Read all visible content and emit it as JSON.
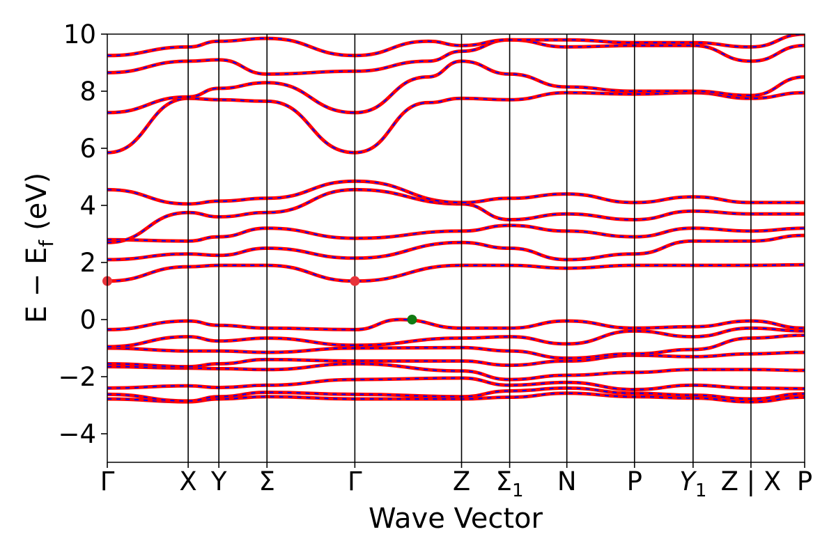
{
  "chart_data": {
    "type": "line",
    "xlabel": "Wave Vector",
    "ylabel": "E − E",
    "ylabel_subscript": "f",
    "ylabel_unit": "(eV)",
    "ylim": [
      -5,
      10
    ],
    "yticks": [
      -4,
      -2,
      0,
      2,
      4,
      6,
      8,
      10
    ],
    "xlim": [
      0,
      1
    ],
    "high_symmetry_points": [
      {
        "label": "Γ",
        "x": 0.0
      },
      {
        "label": "X",
        "x": 0.116
      },
      {
        "label": "Y",
        "x": 0.16
      },
      {
        "label": "Σ",
        "x": 0.229
      },
      {
        "label": "Γ",
        "x": 0.355
      },
      {
        "label": "Z",
        "x": 0.508
      },
      {
        "label": "Σ",
        "sub": "1",
        "x": 0.577
      },
      {
        "label": "N",
        "x": 0.659
      },
      {
        "label": "P",
        "x": 0.756
      },
      {
        "label": "Y",
        "sub": "1",
        "italic": true,
        "x": 0.84
      },
      {
        "label": "Z | X",
        "x": 0.923
      },
      {
        "label": "P",
        "x": 1.0
      }
    ],
    "series": [
      {
        "color": "#ff0000",
        "style": "solid"
      },
      {
        "color": "#0000ff",
        "style": "dashed"
      }
    ],
    "bands": [
      [
        [
          0,
          -2.78
        ],
        [
          0.116,
          -2.88
        ],
        [
          0.16,
          -2.78
        ],
        [
          0.229,
          -2.7
        ],
        [
          0.355,
          -2.78
        ],
        [
          0.508,
          -2.78
        ],
        [
          0.577,
          -2.72
        ],
        [
          0.659,
          -2.58
        ],
        [
          0.756,
          -2.7
        ],
        [
          0.84,
          -2.75
        ],
        [
          0.923,
          -2.88
        ],
        [
          1.0,
          -2.72
        ]
      ],
      [
        [
          0,
          -2.62
        ],
        [
          0.116,
          -2.85
        ],
        [
          0.16,
          -2.7
        ],
        [
          0.229,
          -2.55
        ],
        [
          0.355,
          -2.62
        ],
        [
          0.508,
          -2.7
        ],
        [
          0.577,
          -2.5
        ],
        [
          0.659,
          -2.4
        ],
        [
          0.756,
          -2.58
        ],
        [
          0.84,
          -2.65
        ],
        [
          0.923,
          -2.78
        ],
        [
          1.0,
          -2.6
        ]
      ],
      [
        [
          0,
          -2.4
        ],
        [
          0.116,
          -2.32
        ],
        [
          0.16,
          -2.38
        ],
        [
          0.229,
          -2.3
        ],
        [
          0.355,
          -2.1
        ],
        [
          0.508,
          -2.05
        ],
        [
          0.577,
          -2.3
        ],
        [
          0.659,
          -2.2
        ],
        [
          0.756,
          -2.45
        ],
        [
          0.84,
          -2.3
        ],
        [
          0.923,
          -2.4
        ],
        [
          1.0,
          -2.42
        ]
      ],
      [
        [
          0,
          -1.65
        ],
        [
          0.116,
          -1.7
        ],
        [
          0.16,
          -1.72
        ],
        [
          0.229,
          -1.75
        ],
        [
          0.355,
          -1.55
        ],
        [
          0.508,
          -1.8
        ],
        [
          0.577,
          -2.1
        ],
        [
          0.659,
          -1.95
        ],
        [
          0.756,
          -1.85
        ],
        [
          0.84,
          -1.75
        ],
        [
          0.923,
          -1.75
        ],
        [
          1.0,
          -1.78
        ]
      ],
      [
        [
          0,
          -1.55
        ],
        [
          0.116,
          -1.65
        ],
        [
          0.16,
          -1.55
        ],
        [
          0.229,
          -1.4
        ],
        [
          0.355,
          -1.45
        ],
        [
          0.508,
          -1.45
        ],
        [
          0.577,
          -1.6
        ],
        [
          0.659,
          -1.45
        ],
        [
          0.756,
          -1.25
        ],
        [
          0.84,
          -1.3
        ],
        [
          0.923,
          -1.2
        ],
        [
          1.0,
          -1.15
        ]
      ],
      [
        [
          0,
          -1.0
        ],
        [
          0.116,
          -1.1
        ],
        [
          0.16,
          -1.1
        ],
        [
          0.229,
          -1.15
        ],
        [
          0.355,
          -1.0
        ],
        [
          0.508,
          -0.98
        ],
        [
          0.577,
          -1.1
        ],
        [
          0.659,
          -1.35
        ],
        [
          0.756,
          -1.2
        ],
        [
          0.84,
          -1.05
        ],
        [
          0.923,
          -0.65
        ],
        [
          1.0,
          -0.55
        ]
      ],
      [
        [
          0,
          -0.95
        ],
        [
          0.116,
          -0.6
        ],
        [
          0.16,
          -0.75
        ],
        [
          0.229,
          -0.65
        ],
        [
          0.355,
          -0.9
        ],
        [
          0.508,
          -0.65
        ],
        [
          0.577,
          -0.6
        ],
        [
          0.659,
          -0.85
        ],
        [
          0.756,
          -0.4
        ],
        [
          0.84,
          -0.6
        ],
        [
          0.923,
          -0.3
        ],
        [
          1.0,
          -0.4
        ]
      ],
      [
        [
          0,
          -0.35
        ],
        [
          0.116,
          -0.05
        ],
        [
          0.16,
          -0.2
        ],
        [
          0.229,
          -0.3
        ],
        [
          0.355,
          -0.35
        ],
        [
          0.42,
          0.0
        ],
        [
          0.508,
          -0.3
        ],
        [
          0.577,
          -0.3
        ],
        [
          0.659,
          -0.05
        ],
        [
          0.756,
          -0.3
        ],
        [
          0.84,
          -0.25
        ],
        [
          0.923,
          -0.05
        ],
        [
          1.0,
          -0.3
        ]
      ],
      [
        [
          0,
          1.35
        ],
        [
          0.116,
          1.85
        ],
        [
          0.16,
          1.9
        ],
        [
          0.229,
          1.9
        ],
        [
          0.355,
          1.35
        ],
        [
          0.508,
          1.9
        ],
        [
          0.577,
          1.9
        ],
        [
          0.659,
          1.8
        ],
        [
          0.756,
          1.9
        ],
        [
          0.84,
          1.9
        ],
        [
          0.923,
          1.9
        ],
        [
          1.0,
          1.92
        ]
      ],
      [
        [
          0,
          2.1
        ],
        [
          0.116,
          2.3
        ],
        [
          0.16,
          2.25
        ],
        [
          0.229,
          2.5
        ],
        [
          0.355,
          2.15
        ],
        [
          0.508,
          2.7
        ],
        [
          0.577,
          2.5
        ],
        [
          0.659,
          2.1
        ],
        [
          0.756,
          2.3
        ],
        [
          0.84,
          2.75
        ],
        [
          0.923,
          2.75
        ],
        [
          1.0,
          2.95
        ]
      ],
      [
        [
          0,
          2.8
        ],
        [
          0.116,
          2.75
        ],
        [
          0.16,
          2.9
        ],
        [
          0.229,
          3.2
        ],
        [
          0.355,
          2.85
        ],
        [
          0.508,
          3.1
        ],
        [
          0.577,
          3.3
        ],
        [
          0.659,
          3.1
        ],
        [
          0.756,
          2.9
        ],
        [
          0.84,
          3.2
        ],
        [
          0.923,
          3.1
        ],
        [
          1.0,
          3.2
        ]
      ],
      [
        [
          0,
          2.7
        ],
        [
          0.116,
          3.75
        ],
        [
          0.16,
          3.6
        ],
        [
          0.229,
          3.75
        ],
        [
          0.355,
          4.55
        ],
        [
          0.508,
          4.05
        ],
        [
          0.577,
          3.5
        ],
        [
          0.659,
          3.7
        ],
        [
          0.756,
          3.5
        ],
        [
          0.84,
          3.8
        ],
        [
          0.923,
          3.7
        ],
        [
          1.0,
          3.7
        ]
      ],
      [
        [
          0,
          4.55
        ],
        [
          0.116,
          4.05
        ],
        [
          0.16,
          4.15
        ],
        [
          0.229,
          4.25
        ],
        [
          0.355,
          4.85
        ],
        [
          0.508,
          4.1
        ],
        [
          0.577,
          4.25
        ],
        [
          0.659,
          4.4
        ],
        [
          0.756,
          4.1
        ],
        [
          0.84,
          4.3
        ],
        [
          0.923,
          4.1
        ],
        [
          1.0,
          4.1
        ]
      ],
      [
        [
          0,
          5.85
        ],
        [
          0.116,
          7.75
        ],
        [
          0.16,
          7.7
        ],
        [
          0.229,
          7.65
        ],
        [
          0.355,
          5.85
        ],
        [
          0.46,
          7.6
        ],
        [
          0.508,
          7.75
        ],
        [
          0.577,
          7.7
        ],
        [
          0.659,
          7.95
        ],
        [
          0.756,
          7.9
        ],
        [
          0.84,
          7.95
        ],
        [
          0.923,
          7.75
        ],
        [
          1.0,
          7.95
        ]
      ],
      [
        [
          0,
          7.25
        ],
        [
          0.116,
          7.8
        ],
        [
          0.16,
          8.1
        ],
        [
          0.229,
          8.3
        ],
        [
          0.355,
          7.25
        ],
        [
          0.46,
          8.5
        ],
        [
          0.508,
          9.05
        ],
        [
          0.577,
          8.6
        ],
        [
          0.659,
          8.15
        ],
        [
          0.756,
          8.0
        ],
        [
          0.84,
          8.0
        ],
        [
          0.923,
          7.85
        ],
        [
          1.0,
          8.5
        ]
      ],
      [
        [
          0,
          8.65
        ],
        [
          0.116,
          9.05
        ],
        [
          0.16,
          9.1
        ],
        [
          0.229,
          8.6
        ],
        [
          0.355,
          8.7
        ],
        [
          0.46,
          9.05
        ],
        [
          0.508,
          9.4
        ],
        [
          0.577,
          9.8
        ],
        [
          0.659,
          9.55
        ],
        [
          0.756,
          9.6
        ],
        [
          0.84,
          9.6
        ],
        [
          0.923,
          9.05
        ],
        [
          1.0,
          9.6
        ]
      ],
      [
        [
          0,
          9.25
        ],
        [
          0.116,
          9.55
        ],
        [
          0.16,
          9.75
        ],
        [
          0.229,
          9.85
        ],
        [
          0.355,
          9.25
        ],
        [
          0.46,
          9.75
        ],
        [
          0.508,
          9.6
        ],
        [
          0.577,
          9.8
        ],
        [
          0.659,
          9.8
        ],
        [
          0.756,
          9.7
        ],
        [
          0.84,
          9.7
        ],
        [
          0.923,
          9.55
        ],
        [
          1.0,
          10.0
        ]
      ]
    ],
    "markers": [
      {
        "name": "cbm-point",
        "x": 0.0,
        "y": 1.35,
        "color": "#e8333a"
      },
      {
        "name": "cbm-point",
        "x": 0.355,
        "y": 1.35,
        "color": "#e8333a"
      },
      {
        "name": "vbm-point",
        "x": 0.437,
        "y": 0.0,
        "color": "#117a11"
      }
    ]
  }
}
